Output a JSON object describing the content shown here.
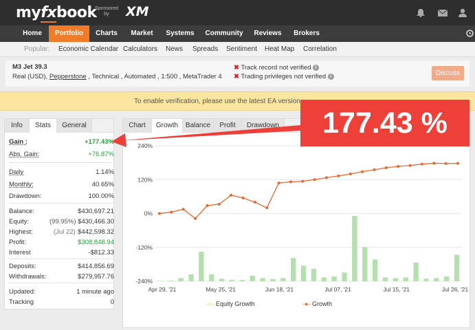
{
  "header": {
    "logo_left": "my",
    "logo_mid": "fx",
    "logo_right": "book",
    "sponsor_line1": "Sponsored",
    "sponsor_line2": "by",
    "sponsor_name": "XM"
  },
  "nav": [
    "Home",
    "Portfolio",
    "Charts",
    "Market",
    "Systems",
    "Community",
    "Reviews",
    "Brokers"
  ],
  "subnav": {
    "popular": "Popular:",
    "items": [
      "Economic Calendar",
      "Calculators",
      "News",
      "Spreads",
      "Sentiment",
      "Heat Map",
      "Correlation"
    ]
  },
  "system": {
    "title": "M3 Jet 39.3",
    "sub_prefix": "Real (USD), ",
    "broker": "Pepperstone",
    "sub_suffix": " , Technical , Automated , 1:500 , MetaTrader 4",
    "warn1": "Track record not verified",
    "warn2": "Trading privileges not verified",
    "discuss": "Discuss"
  },
  "banner": "To enable verification, please use the latest EA version",
  "stats": {
    "tabs": [
      "Info",
      "Stats",
      "General"
    ],
    "rows": [
      {
        "label": "Gain :",
        "value": "+177.43%"
      },
      {
        "label": "Abs. Gain:",
        "value": "+76.87%"
      },
      {
        "label": "Daily",
        "value": "1.14%"
      },
      {
        "label": "Monthly:",
        "value": "40.65%"
      },
      {
        "label": "Drawdown:",
        "value": "100.00%"
      },
      {
        "label": "Balance:",
        "value": "$430,697.21"
      },
      {
        "label": "Equity:",
        "note": "(99.95%)",
        "value": "$430,466.30"
      },
      {
        "label": "Highest:",
        "note": "(Jul 22)",
        "value": "$442,598.32"
      },
      {
        "label": "Profit:",
        "value": "$308,848.94"
      },
      {
        "label": "Interest",
        "value": "-$812.33"
      },
      {
        "label": "Deposits:",
        "value": "$414,856.69"
      },
      {
        "label": "Withdrawals:",
        "value": "$279,957.76"
      },
      {
        "label": "Updated:",
        "value": "1 minute ago"
      },
      {
        "label": "Tracking",
        "value": "0"
      }
    ]
  },
  "chart_tabs": [
    "Chart",
    "Growth",
    "Balance",
    "Profit",
    "Drawdown"
  ],
  "callout": "177.43 %",
  "chart_data": {
    "type": "line",
    "y_ticks": [
      "240%",
      "120%",
      "0%",
      "-120%",
      "-240%"
    ],
    "ylim": [
      -240,
      240
    ],
    "x_ticks": [
      "Apr 29, '21",
      "May 25, '21",
      "Jun 18, '21",
      "Jul 07, '21",
      "Jul 15, '21",
      "Jul 26, '21"
    ],
    "series": [
      {
        "name": "Equity Growth",
        "values": []
      },
      {
        "name": "Growth",
        "values": [
          0,
          5,
          15,
          -18,
          28,
          33,
          65,
          55,
          40,
          20,
          108,
          112,
          114,
          120,
          127,
          133,
          140,
          148,
          155,
          162,
          167,
          170,
          175,
          178,
          177,
          177.43
        ]
      }
    ],
    "bars": [
      1,
      2,
      10,
      22,
      95,
      22,
      8,
      4,
      4,
      18,
      10,
      7,
      10,
      75,
      50,
      40,
      12,
      15,
      28,
      210,
      110,
      70,
      12,
      10,
      12,
      60,
      8,
      10,
      15,
      85
    ]
  },
  "colors": {
    "accent": "#f07c29",
    "growth": "#e8672c",
    "bars": "#b6dfb0",
    "callout": "#ed4038"
  }
}
